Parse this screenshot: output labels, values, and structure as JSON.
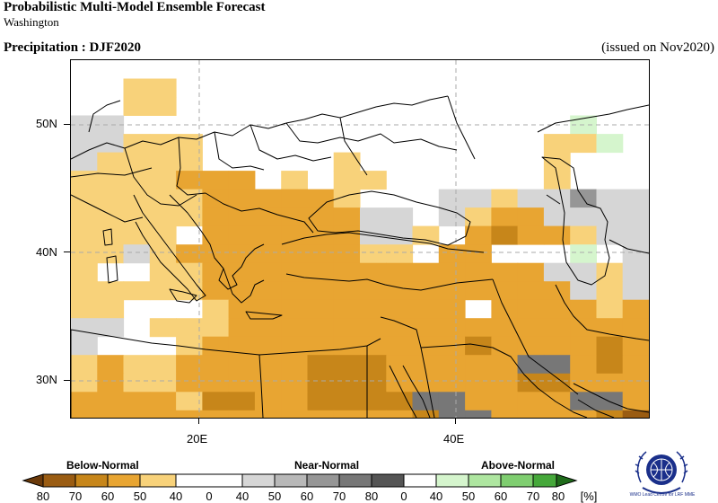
{
  "header": {
    "title": "Probabilistic Multi-Model Ensemble Forecast",
    "subtitle": "Washington",
    "parameter": "Precipitation : DJF2020",
    "issued": "(issued on Nov2020)"
  },
  "axes": {
    "lat_labels": [
      "50N",
      "40N",
      "30N"
    ],
    "lon_labels": [
      "20E",
      "40E"
    ]
  },
  "legend": {
    "categories": [
      "Below-Normal",
      "Near-Normal",
      "Above-Normal"
    ],
    "values": [
      "80",
      "70",
      "60",
      "50",
      "40",
      "0",
      "40",
      "50",
      "60",
      "70",
      "80",
      "0",
      "40",
      "50",
      "60",
      "70",
      "80"
    ],
    "unit": "[%]",
    "colors": {
      "below_80": "#6b3a0a",
      "below_70": "#9a5c12",
      "below_60": "#c7861a",
      "below_50": "#e8a532",
      "below_40": "#f8d27a",
      "near_0": "#ffffff",
      "near_40": "#d6d6d6",
      "near_50": "#b8b8b8",
      "near_60": "#969696",
      "near_70": "#777777",
      "near_80": "#555555",
      "above_40": "#d5f5cd",
      "above_50": "#aee6a0",
      "above_60": "#7fce70",
      "above_70": "#45a83a",
      "above_80": "#1f6b1a"
    }
  },
  "logo": {
    "icon": "wmo-globe-icon",
    "text": "WMO Lead Centre for LRF MME"
  }
}
